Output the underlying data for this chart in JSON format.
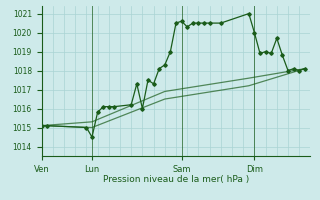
{
  "bg_color": "#ceeaea",
  "grid_color": "#aad4d4",
  "line_color": "#1a5c1a",
  "xlabel": "Pression niveau de la mer( hPa )",
  "ylim": [
    1013.5,
    1021.4
  ],
  "yticks": [
    1014,
    1015,
    1016,
    1017,
    1018,
    1019,
    1020,
    1021
  ],
  "day_labels": [
    "Ven",
    "Lun",
    "Sam",
    "Dim"
  ],
  "total_points": 48,
  "series1_x": [
    0,
    1,
    8,
    9,
    10,
    11,
    12,
    13,
    16,
    17,
    18,
    19,
    20,
    21,
    22,
    23,
    24,
    25,
    26,
    27,
    28,
    29,
    30,
    32,
    37,
    38,
    39,
    40,
    41,
    42,
    43,
    44,
    45,
    46,
    47
  ],
  "series1_y": [
    1015.1,
    1015.1,
    1015.0,
    1014.5,
    1015.8,
    1016.1,
    1016.1,
    1016.1,
    1016.2,
    1017.3,
    1016.0,
    1017.5,
    1017.3,
    1018.1,
    1018.3,
    1019.0,
    1020.5,
    1020.6,
    1020.3,
    1020.5,
    1020.5,
    1020.5,
    1020.5,
    1020.5,
    1021.0,
    1020.0,
    1018.9,
    1019.0,
    1018.9,
    1019.7,
    1018.8,
    1018.0,
    1018.1,
    1018.0,
    1018.1
  ],
  "series2_x": [
    0,
    9,
    22,
    37,
    47
  ],
  "series2_y": [
    1015.1,
    1015.0,
    1016.5,
    1017.2,
    1018.1
  ],
  "series3_x": [
    0,
    9,
    22,
    37,
    47
  ],
  "series3_y": [
    1015.1,
    1015.3,
    1016.9,
    1017.6,
    1018.1
  ]
}
